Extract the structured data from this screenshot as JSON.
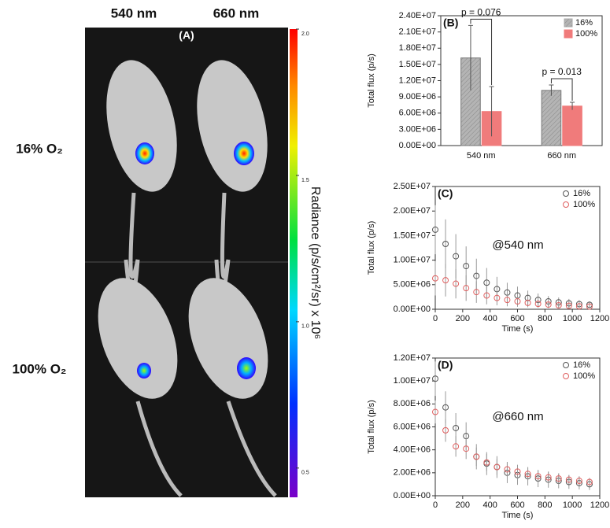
{
  "panel_a": {
    "label": "(A)",
    "columns": [
      "540 nm",
      "660 nm"
    ],
    "rows": [
      "16% O₂",
      "100% O₂"
    ],
    "colorbar": {
      "label": "Radiance (p/s/cm²/sr) x 10⁶",
      "lim": [
        0.4,
        2.0
      ],
      "ticks": [
        {
          "value": 2,
          "label": "2.0"
        },
        {
          "value": 1.5,
          "label": "1.5"
        },
        {
          "value": 1,
          "label": "1.0"
        },
        {
          "value": 0.5,
          "label": "0.5"
        }
      ]
    }
  },
  "chart_data": [
    {
      "type": "bar",
      "title": "(B)",
      "y_label": "Total flux (p/s)",
      "categories": [
        "540 nm",
        "660 nm"
      ],
      "series": [
        {
          "name": "16%",
          "color": "#a8a8a8",
          "values": [
            16200000,
            10200000
          ],
          "errors": [
            6000000,
            1000000
          ]
        },
        {
          "name": "100%",
          "color": "#f07b7b",
          "values": [
            6300000,
            7300000
          ],
          "errors": [
            4600000,
            700000
          ]
        }
      ],
      "annotations": [
        "p = 0.076",
        "p = 0.013"
      ],
      "ylim": [
        0,
        24000000
      ],
      "yticks": [
        {
          "value": 0,
          "label": "0.00E+00"
        },
        {
          "value": 3000000,
          "label": "3.00E+06"
        },
        {
          "value": 6000000,
          "label": "6.00E+06"
        },
        {
          "value": 9000000,
          "label": "9.00E+06"
        },
        {
          "value": 12000000,
          "label": "1.20E+07"
        },
        {
          "value": 15000000,
          "label": "1.50E+07"
        },
        {
          "value": 18000000,
          "label": "1.80E+07"
        },
        {
          "value": 21000000,
          "label": "2.10E+07"
        },
        {
          "value": 24000000,
          "label": "2.40E+07"
        }
      ]
    },
    {
      "type": "scatter",
      "title": "(C)",
      "y_label": "Total flux (p/s)",
      "x_label": "Time (s)",
      "annotation": "@540 nm",
      "x": [
        0,
        75,
        150,
        225,
        300,
        375,
        450,
        525,
        600,
        675,
        750,
        825,
        900,
        975,
        1050,
        1125
      ],
      "series": [
        {
          "name": "16%",
          "color": "#555555",
          "values": [
            16200000,
            13300000,
            10800000,
            8800000,
            6800000,
            5400000,
            4100000,
            3400000,
            2800000,
            2300000,
            1900000,
            1600000,
            1400000,
            1200000,
            1050000,
            900000
          ],
          "errors": [
            5000000,
            5000000,
            4500000,
            4000000,
            3500000,
            3000000,
            2500000,
            2000000,
            1800000,
            1500000,
            1300000,
            1100000,
            1000000,
            900000,
            800000,
            700000
          ]
        },
        {
          "name": "100%",
          "color": "#e06060",
          "values": [
            6300000,
            5900000,
            5200000,
            4300000,
            3500000,
            2800000,
            2300000,
            1900000,
            1600000,
            1300000,
            1100000,
            950000,
            800000,
            700000,
            600000,
            550000
          ],
          "errors": [
            3500000,
            3300000,
            3000000,
            2600000,
            2200000,
            1800000,
            1500000,
            1300000,
            1100000,
            900000,
            800000,
            700000,
            600000,
            500000,
            450000,
            400000
          ]
        }
      ],
      "xlim": [
        0,
        1200
      ],
      "xticks": [
        0,
        200,
        400,
        600,
        800,
        1000,
        1200
      ],
      "ylim": [
        0,
        25000000
      ],
      "yticks": [
        {
          "value": 0,
          "label": "0.00E+00"
        },
        {
          "value": 5000000,
          "label": "5.00E+06"
        },
        {
          "value": 10000000,
          "label": "1.00E+07"
        },
        {
          "value": 15000000,
          "label": "1.50E+07"
        },
        {
          "value": 20000000,
          "label": "2.00E+07"
        },
        {
          "value": 25000000,
          "label": "2.50E+07"
        }
      ]
    },
    {
      "type": "scatter",
      "title": "(D)",
      "y_label": "Total flux (p/s)",
      "x_label": "Time (s)",
      "annotation": "@660 nm",
      "x": [
        0,
        75,
        150,
        225,
        300,
        375,
        450,
        525,
        600,
        675,
        750,
        825,
        900,
        975,
        1050,
        1125
      ],
      "series": [
        {
          "name": "16%",
          "color": "#555555",
          "values": [
            10200000,
            7700000,
            5900000,
            5200000,
            3400000,
            2800000,
            2500000,
            2000000,
            1800000,
            1700000,
            1500000,
            1400000,
            1300000,
            1200000,
            1100000,
            1000000
          ],
          "errors": [
            1500000,
            1400000,
            1300000,
            1200000,
            1100000,
            1000000,
            950000,
            900000,
            850000,
            800000,
            750000,
            700000,
            650000,
            600000,
            550000,
            500000
          ]
        },
        {
          "name": "100%",
          "color": "#e06060",
          "values": [
            7300000,
            5700000,
            4300000,
            4100000,
            3400000,
            2900000,
            2500000,
            2300000,
            2100000,
            1900000,
            1700000,
            1600000,
            1500000,
            1400000,
            1300000,
            1200000
          ],
          "errors": [
            1000000,
            1000000,
            900000,
            900000,
            800000,
            750000,
            700000,
            650000,
            600000,
            550000,
            500000,
            500000,
            450000,
            400000,
            400000,
            350000
          ]
        }
      ],
      "xlim": [
        0,
        1200
      ],
      "xticks": [
        0,
        200,
        400,
        600,
        800,
        1000,
        1200
      ],
      "ylim": [
        0,
        12000000
      ],
      "yticks": [
        {
          "value": 0,
          "label": "0.00E+00"
        },
        {
          "value": 2000000,
          "label": "2.00E+06"
        },
        {
          "value": 4000000,
          "label": "4.00E+06"
        },
        {
          "value": 6000000,
          "label": "6.00E+06"
        },
        {
          "value": 8000000,
          "label": "8.00E+06"
        },
        {
          "value": 10000000,
          "label": "1.00E+07"
        },
        {
          "value": 12000000,
          "label": "1.20E+07"
        }
      ]
    }
  ]
}
